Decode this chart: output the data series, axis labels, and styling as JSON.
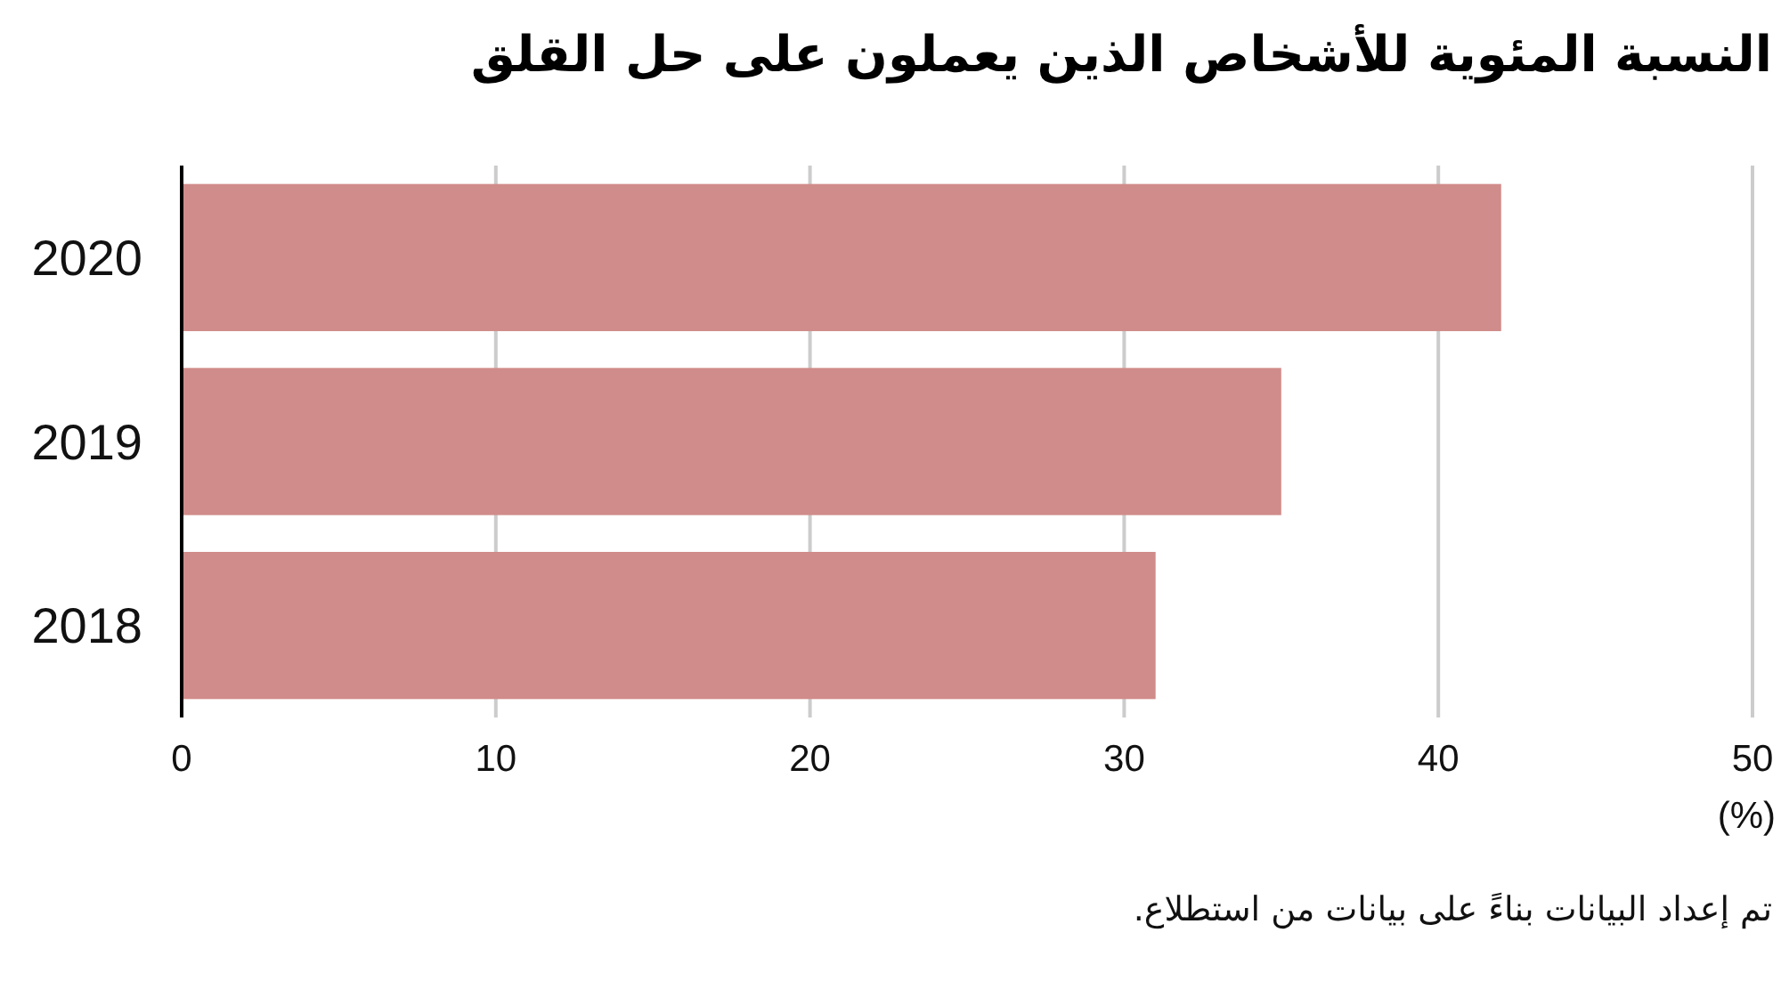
{
  "chart_data": {
    "type": "bar",
    "orientation": "horizontal",
    "title": "النسبة المئوية للأشخاص الذين يعملون على حل القلق",
    "categories": [
      "2020",
      "2019",
      "2018"
    ],
    "values": [
      42,
      35,
      31
    ],
    "color": "#d08c8a",
    "xlim": [
      0,
      50
    ],
    "xticks": [
      0,
      10,
      20,
      30,
      40,
      50
    ],
    "xlabel": "(%)",
    "grid": "x",
    "annotations": [
      "تم إعداد البيانات بناءً على بيانات من استطلاع."
    ]
  }
}
